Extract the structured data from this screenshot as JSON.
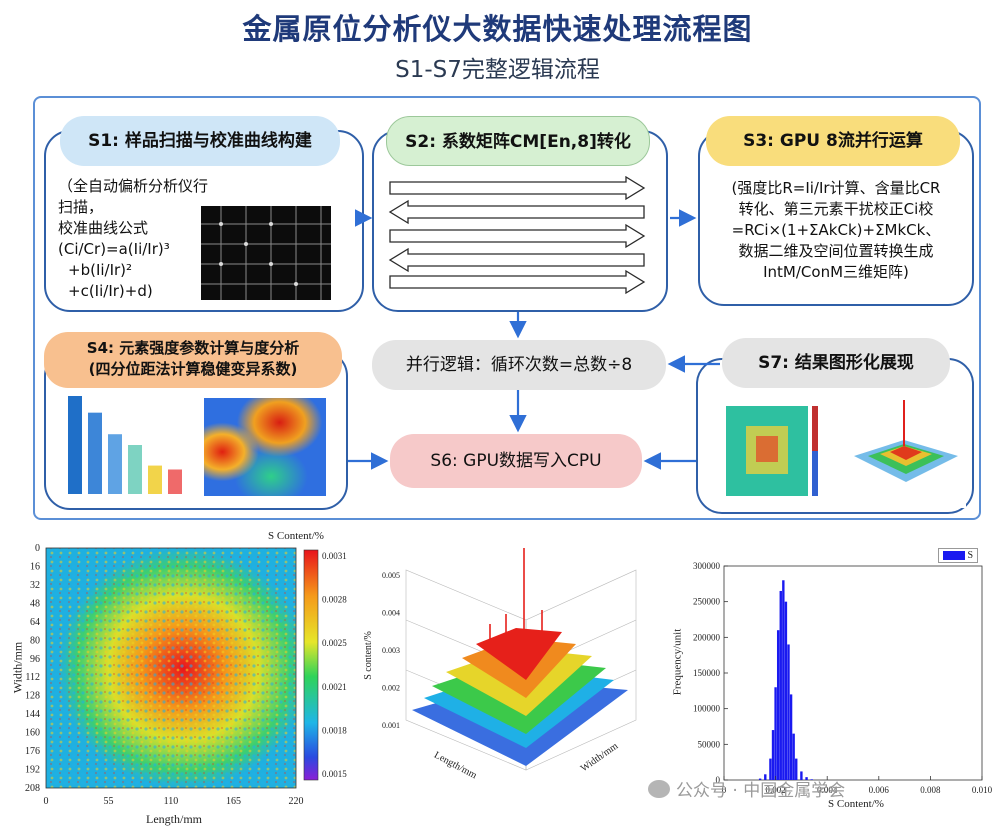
{
  "title": "金属原位分析仪大数据快速处理流程图",
  "subtitle": "S1-S7完整逻辑流程",
  "s1": {
    "label": "S1:  样品扫描与校准曲线构建",
    "lines": [
      "（全自动偏析分析仪行扫描，",
      "校准曲线公式",
      "(Ci/Cr)=a(Ii/Ir)³",
      "+b(Ii/Ir)²",
      "+c(Ii/Ir)+d)"
    ]
  },
  "s2": {
    "label": "S2:  系数矩阵CM[En,8]转化"
  },
  "s3": {
    "label": "S3:  GPU 8流并行运算",
    "lines": [
      "(强度比R=Ii/Ir计算、含量比CR",
      "转化、第三元素干扰校正Ci校",
      "=RCi×(1+ΣAkCk)+ΣMkCk、",
      "数据二维及空间位置转换生成",
      "IntM/ConM三维矩阵)"
    ]
  },
  "s4": {
    "label1": "S4:  元素强度参数计算与度分析",
    "label2": "(四分位距法计算稳健变异系数)"
  },
  "parallel": {
    "label": "并行逻辑：循环次数=总数÷8"
  },
  "s6": {
    "label": "S6:  GPU数据写入CPU"
  },
  "s7": {
    "label": "S7:  结果图形化展现"
  },
  "colors": {
    "frame": "#5b8fd6",
    "arrow": "#2f6fd6",
    "title": "#1f3a7a",
    "bars": [
      "#1f6fc8",
      "#3d86d8",
      "#5fa3e4",
      "#7ed3c2",
      "#f2d44a",
      "#ef6a6a"
    ]
  },
  "bar_chart": {
    "values": [
      1.0,
      0.83,
      0.61,
      0.5,
      0.29,
      0.25
    ]
  },
  "heatmap": {
    "colorbar_title": "S Content/%",
    "colorbar_ticks": [
      "0.0031",
      "0.0028",
      "0.0025",
      "0.0021",
      "0.0018",
      "0.0015"
    ],
    "y_ticks": [
      "0",
      "16",
      "32",
      "48",
      "64",
      "80",
      "96",
      "112",
      "128",
      "144",
      "160",
      "176",
      "192",
      "208"
    ],
    "x_ticks": [
      "0",
      "55",
      "110",
      "165",
      "220"
    ],
    "xlabel": "Length/mm",
    "ylabel": "Width/mm"
  },
  "surface": {
    "z_ticks": [
      "0.005",
      "0.004",
      "0.003",
      "0.002",
      "0.001"
    ],
    "zlabel": "S content/%",
    "xlabel": "Length/mm",
    "ylabel": "Width/mm"
  },
  "chart_data": {
    "type": "bar",
    "title": "",
    "legend": "S",
    "xlabel": "S Content/%",
    "ylabel": "Frequency/unit",
    "x_ticks": [
      "0",
      "0.002",
      "0.004",
      "0.006",
      "0.008",
      "0.010"
    ],
    "y_ticks": [
      "0",
      "50000",
      "100000",
      "150000",
      "200000",
      "250000",
      "300000"
    ],
    "xlim": [
      0,
      0.01
    ],
    "ylim": [
      0,
      300000
    ],
    "x": [
      0.0014,
      0.0016,
      0.0018,
      0.0019,
      0.002,
      0.0021,
      0.0022,
      0.0023,
      0.0024,
      0.0025,
      0.0026,
      0.0027,
      0.0028,
      0.003,
      0.0032,
      0.0034
    ],
    "values": [
      2000,
      8000,
      30000,
      70000,
      130000,
      210000,
      265000,
      280000,
      250000,
      190000,
      120000,
      65000,
      30000,
      12000,
      4000,
      1000
    ]
  },
  "watermark": "公众号 · 中国金属学会"
}
